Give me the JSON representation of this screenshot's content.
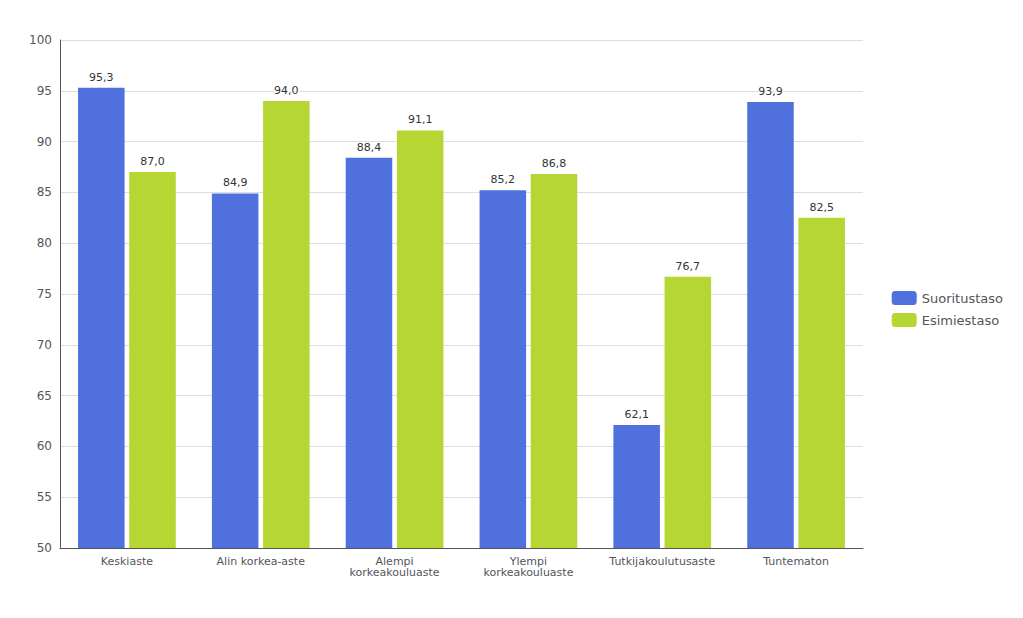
{
  "chart_data": {
    "type": "bar",
    "categories": [
      "Keskiaste",
      "Alin korkea-aste",
      "Alempi\nkorkeakouluaste",
      "Ylempi\nkorkeakouluaste",
      "Tutkijakoulutusaste",
      "Tuntematon"
    ],
    "series": [
      {
        "name": "Suoritustaso",
        "values": [
          95.3,
          84.9,
          88.4,
          85.2,
          62.1,
          93.9
        ],
        "value_labels": [
          "95,3",
          "84,9",
          "88,4",
          "85,2",
          "62,1",
          "93,9"
        ]
      },
      {
        "name": "Esimiestaso",
        "values": [
          87.0,
          94.0,
          91.1,
          86.8,
          76.7,
          82.5
        ],
        "value_labels": [
          "87,0",
          "94,0",
          "91,1",
          "86,8",
          "76,7",
          "82,5"
        ]
      }
    ],
    "ylim": [
      50,
      100
    ],
    "yticks": [
      50,
      55,
      60,
      65,
      70,
      75,
      80,
      85,
      90,
      95,
      100
    ],
    "grid": true,
    "legend": "right",
    "data_labels": true
  }
}
